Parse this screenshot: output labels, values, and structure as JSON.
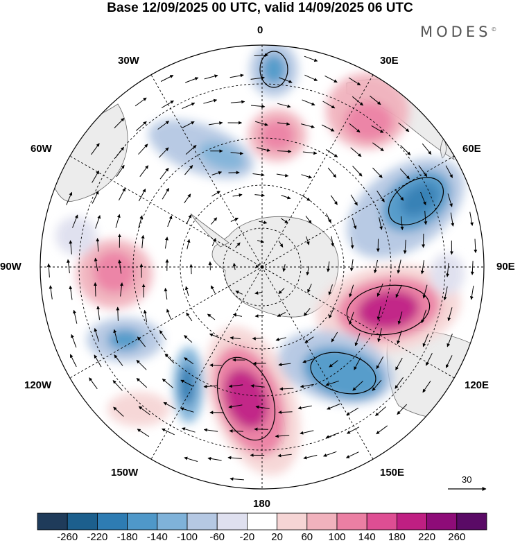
{
  "title": "Base 12/09/2025 00 UTC, valid 14/09/2025 06 UTC",
  "brand": "MODES",
  "brand_mark": "©",
  "map": {
    "projection": "south polar stereographic",
    "longitude_labels": [
      "0",
      "30E",
      "60E",
      "90E",
      "120E",
      "150E",
      "180",
      "150W",
      "120W",
      "90W",
      "60W",
      "30W"
    ],
    "wind_reference_vector": {
      "label": "30"
    }
  },
  "colorbar": {
    "ticks": [
      "-260",
      "-220",
      "-180",
      "-140",
      "-100",
      "-60",
      "-20",
      "20",
      "60",
      "100",
      "140",
      "180",
      "220",
      "260"
    ],
    "colors": [
      "#1f3b5a",
      "#1c5f8d",
      "#2e7cb3",
      "#4f98c9",
      "#7fb2d9",
      "#b5c8e3",
      "#dfe0ef",
      "#ffffff",
      "#f6d5d5",
      "#f1b2bd",
      "#eb7fa3",
      "#de4e93",
      "#bf1f82",
      "#8e0c78",
      "#5a0a66"
    ]
  },
  "colors": {
    "land": "#ececec",
    "outline": "#000000"
  }
}
